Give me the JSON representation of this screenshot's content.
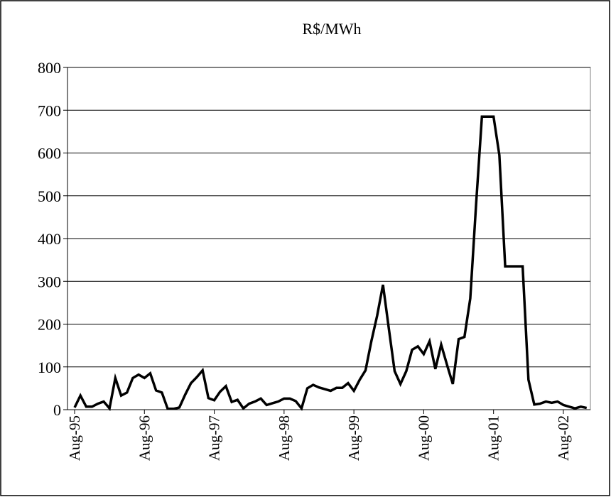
{
  "chart_data": {
    "type": "line",
    "title": "R$/MWh",
    "categories": [
      "Aug-95",
      null,
      null,
      null,
      null,
      null,
      null,
      null,
      null,
      null,
      null,
      null,
      "Aug-96",
      null,
      null,
      null,
      null,
      null,
      null,
      null,
      null,
      null,
      null,
      null,
      "Aug-97",
      null,
      null,
      null,
      null,
      null,
      null,
      null,
      null,
      null,
      null,
      null,
      "Aug-98",
      null,
      null,
      null,
      null,
      null,
      null,
      null,
      null,
      null,
      null,
      null,
      "Aug-99",
      null,
      null,
      null,
      null,
      null,
      null,
      null,
      null,
      null,
      null,
      null,
      "Aug-00",
      null,
      null,
      null,
      null,
      null,
      null,
      null,
      null,
      null,
      null,
      null,
      "Aug-01",
      null,
      null,
      null,
      null,
      null,
      null,
      null,
      null,
      null,
      null,
      null,
      "Aug-02",
      null,
      null,
      null,
      null
    ],
    "series": [
      {
        "color": "#000000",
        "values": [
          5,
          33,
          7,
          7,
          14,
          19,
          3,
          74,
          33,
          40,
          74,
          82,
          74,
          85,
          45,
          40,
          2,
          2,
          5,
          35,
          62,
          76,
          92,
          27,
          22,
          42,
          55,
          18,
          23,
          3,
          14,
          19,
          26,
          11,
          15,
          19,
          26,
          26,
          20,
          3,
          50,
          58,
          52,
          48,
          44,
          51,
          51,
          62,
          44,
          70,
          92,
          160,
          220,
          292,
          190,
          90,
          60,
          90,
          140,
          148,
          130,
          160,
          95,
          152,
          105,
          60,
          165,
          170,
          260,
          480,
          685,
          685,
          685,
          595,
          335,
          335,
          335,
          335,
          70,
          12,
          14,
          19,
          16,
          19,
          11,
          7,
          3,
          7,
          4
        ]
      }
    ],
    "ylim": [
      0,
      800
    ],
    "yticks": [
      0,
      100,
      200,
      300,
      400,
      500,
      600,
      700,
      800
    ],
    "grid": true
  }
}
